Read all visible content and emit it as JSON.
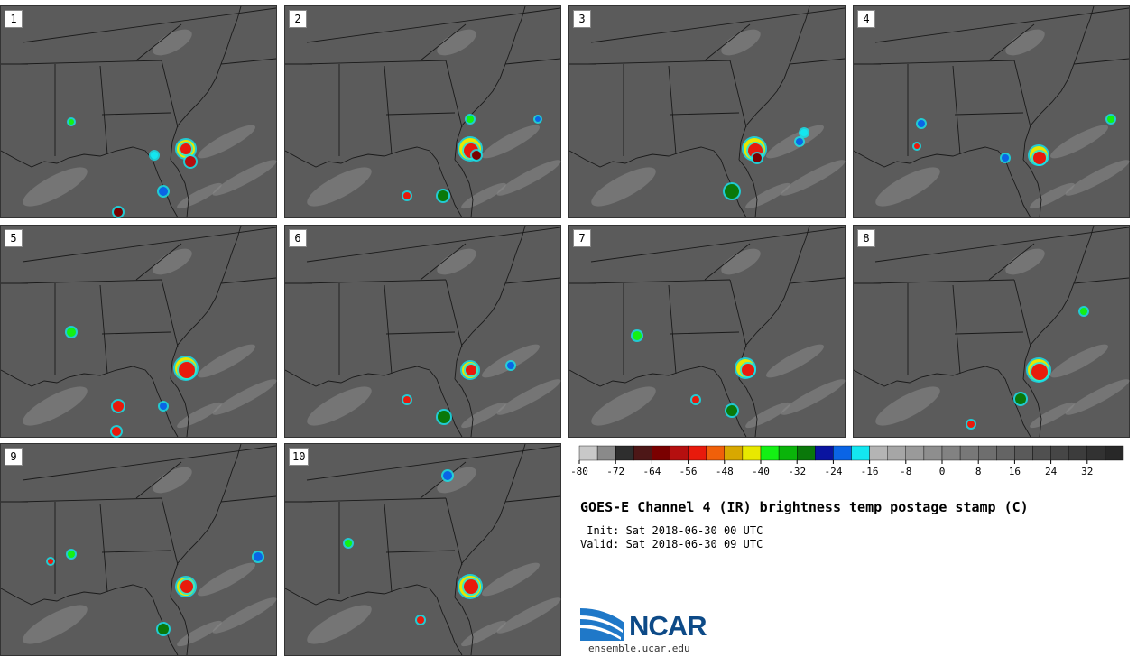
{
  "panels": [
    {
      "label": "1"
    },
    {
      "label": "2"
    },
    {
      "label": "3"
    },
    {
      "label": "4"
    },
    {
      "label": "5"
    },
    {
      "label": "6"
    },
    {
      "label": "7"
    },
    {
      "label": "8"
    },
    {
      "label": "9"
    },
    {
      "label": "10"
    }
  ],
  "colorbar": {
    "colors": [
      "#c8c8c8",
      "#8a8a8a",
      "#2e2e2e",
      "#4d1717",
      "#7a0000",
      "#b50f0f",
      "#e81a0c",
      "#f0600a",
      "#d8a800",
      "#e8e800",
      "#14f014",
      "#0ab40a",
      "#0a780a",
      "#0a14a0",
      "#0a64e6",
      "#14e6f0",
      "#b4b4b4",
      "#a6a6a6",
      "#9a9a9a",
      "#8e8e8e",
      "#828282",
      "#787878",
      "#6e6e6e",
      "#646464",
      "#5a5a5a",
      "#505050",
      "#464646",
      "#3c3c3c",
      "#323232",
      "#282828"
    ],
    "tick_labels": [
      "-80",
      "-72",
      "-64",
      "-56",
      "-48",
      "-40",
      "-32",
      "-24",
      "-16",
      "-8",
      "0",
      "8",
      "16",
      "24",
      "32"
    ]
  },
  "title": "GOES-E Channel 4 (IR) brightness temp postage stamp (C)",
  "init_text": " Init: Sat 2018-06-30 00 UTC",
  "valid_text": "Valid: Sat 2018-06-30 09 UTC",
  "logo": {
    "word": "NCAR",
    "url": "ensemble.ucar.edu"
  }
}
